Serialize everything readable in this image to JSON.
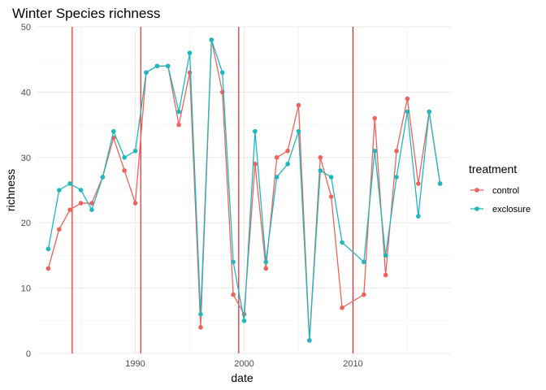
{
  "chart_data": {
    "type": "line",
    "title": "Winter Species richness",
    "xlabel": "date",
    "ylabel": "richness",
    "xlim": [
      1981,
      2019
    ],
    "ylim": [
      0,
      50
    ],
    "x_ticks": [
      1990,
      2000,
      2010
    ],
    "y_ticks": [
      0,
      10,
      20,
      30,
      40,
      50
    ],
    "grid": true,
    "legend_position": "right",
    "legend_title": "treatment",
    "vlines": {
      "x": [
        1984.2,
        1990.5,
        1999.5,
        2010
      ],
      "color": "#e8232a"
    },
    "series": [
      {
        "name": "control",
        "color": "#f0625c",
        "points": [
          [
            1982,
            13
          ],
          [
            1983,
            19
          ],
          [
            1984,
            22
          ],
          [
            1985,
            23
          ],
          [
            1986,
            23
          ],
          [
            1987,
            27
          ],
          [
            1988,
            33
          ],
          [
            1989,
            28
          ],
          [
            1990,
            23
          ],
          [
            1991,
            43
          ],
          [
            1992,
            44
          ],
          [
            1993,
            44
          ],
          [
            1994,
            35
          ],
          [
            1995,
            43
          ],
          [
            1996,
            4
          ],
          [
            1997,
            48
          ],
          [
            1998,
            40
          ],
          [
            1999,
            9
          ],
          [
            2000,
            6
          ],
          [
            2001,
            29
          ],
          [
            2002,
            13
          ],
          [
            2003,
            30
          ],
          [
            2004,
            31
          ],
          [
            2005,
            38
          ],
          [
            2006,
            2
          ],
          [
            2007,
            30
          ],
          [
            2008,
            24
          ],
          [
            2009,
            7
          ],
          [
            2011,
            9
          ],
          [
            2012,
            36
          ],
          [
            2013,
            12
          ],
          [
            2014,
            31
          ],
          [
            2015,
            39
          ],
          [
            2016,
            26
          ],
          [
            2017,
            37
          ],
          [
            2018,
            26
          ]
        ]
      },
      {
        "name": "exclosure",
        "color": "#1fb8bf",
        "points": [
          [
            1982,
            16
          ],
          [
            1983,
            25
          ],
          [
            1984,
            26
          ],
          [
            1985,
            25
          ],
          [
            1986,
            22
          ],
          [
            1987,
            27
          ],
          [
            1988,
            34
          ],
          [
            1989,
            30
          ],
          [
            1990,
            31
          ],
          [
            1991,
            43
          ],
          [
            1992,
            44
          ],
          [
            1993,
            44
          ],
          [
            1994,
            37
          ],
          [
            1995,
            46
          ],
          [
            1996,
            6
          ],
          [
            1997,
            48
          ],
          [
            1998,
            43
          ],
          [
            1999,
            14
          ],
          [
            2000,
            5
          ],
          [
            2001,
            34
          ],
          [
            2002,
            14
          ],
          [
            2003,
            27
          ],
          [
            2004,
            29
          ],
          [
            2005,
            34
          ],
          [
            2006,
            2
          ],
          [
            2007,
            28
          ],
          [
            2008,
            27
          ],
          [
            2009,
            17
          ],
          [
            2011,
            14
          ],
          [
            2012,
            31
          ],
          [
            2013,
            15
          ],
          [
            2014,
            27
          ],
          [
            2015,
            37
          ],
          [
            2016,
            21
          ],
          [
            2017,
            37
          ],
          [
            2018,
            26
          ]
        ]
      }
    ]
  }
}
